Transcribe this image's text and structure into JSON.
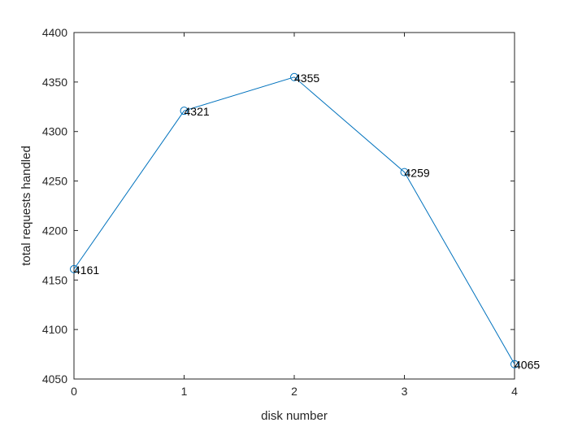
{
  "chart_data": {
    "type": "line",
    "title": "",
    "xlabel": "disk number",
    "ylabel": "total requests handled",
    "x": [
      0,
      1,
      2,
      3,
      4
    ],
    "series": [
      {
        "values": [
          4161,
          4321,
          4355,
          4259,
          4065
        ],
        "marker": "circle",
        "color": "#0072BD"
      }
    ],
    "xlim": [
      0,
      4
    ],
    "ylim": [
      4050,
      4400
    ],
    "xticks": [
      0,
      1,
      2,
      3,
      4
    ],
    "yticks": [
      4050,
      4100,
      4150,
      4200,
      4250,
      4300,
      4350,
      4400
    ],
    "data_labels": [
      "4161",
      "4321",
      "4355",
      "4259",
      "4065"
    ],
    "grid": false,
    "box": true
  }
}
